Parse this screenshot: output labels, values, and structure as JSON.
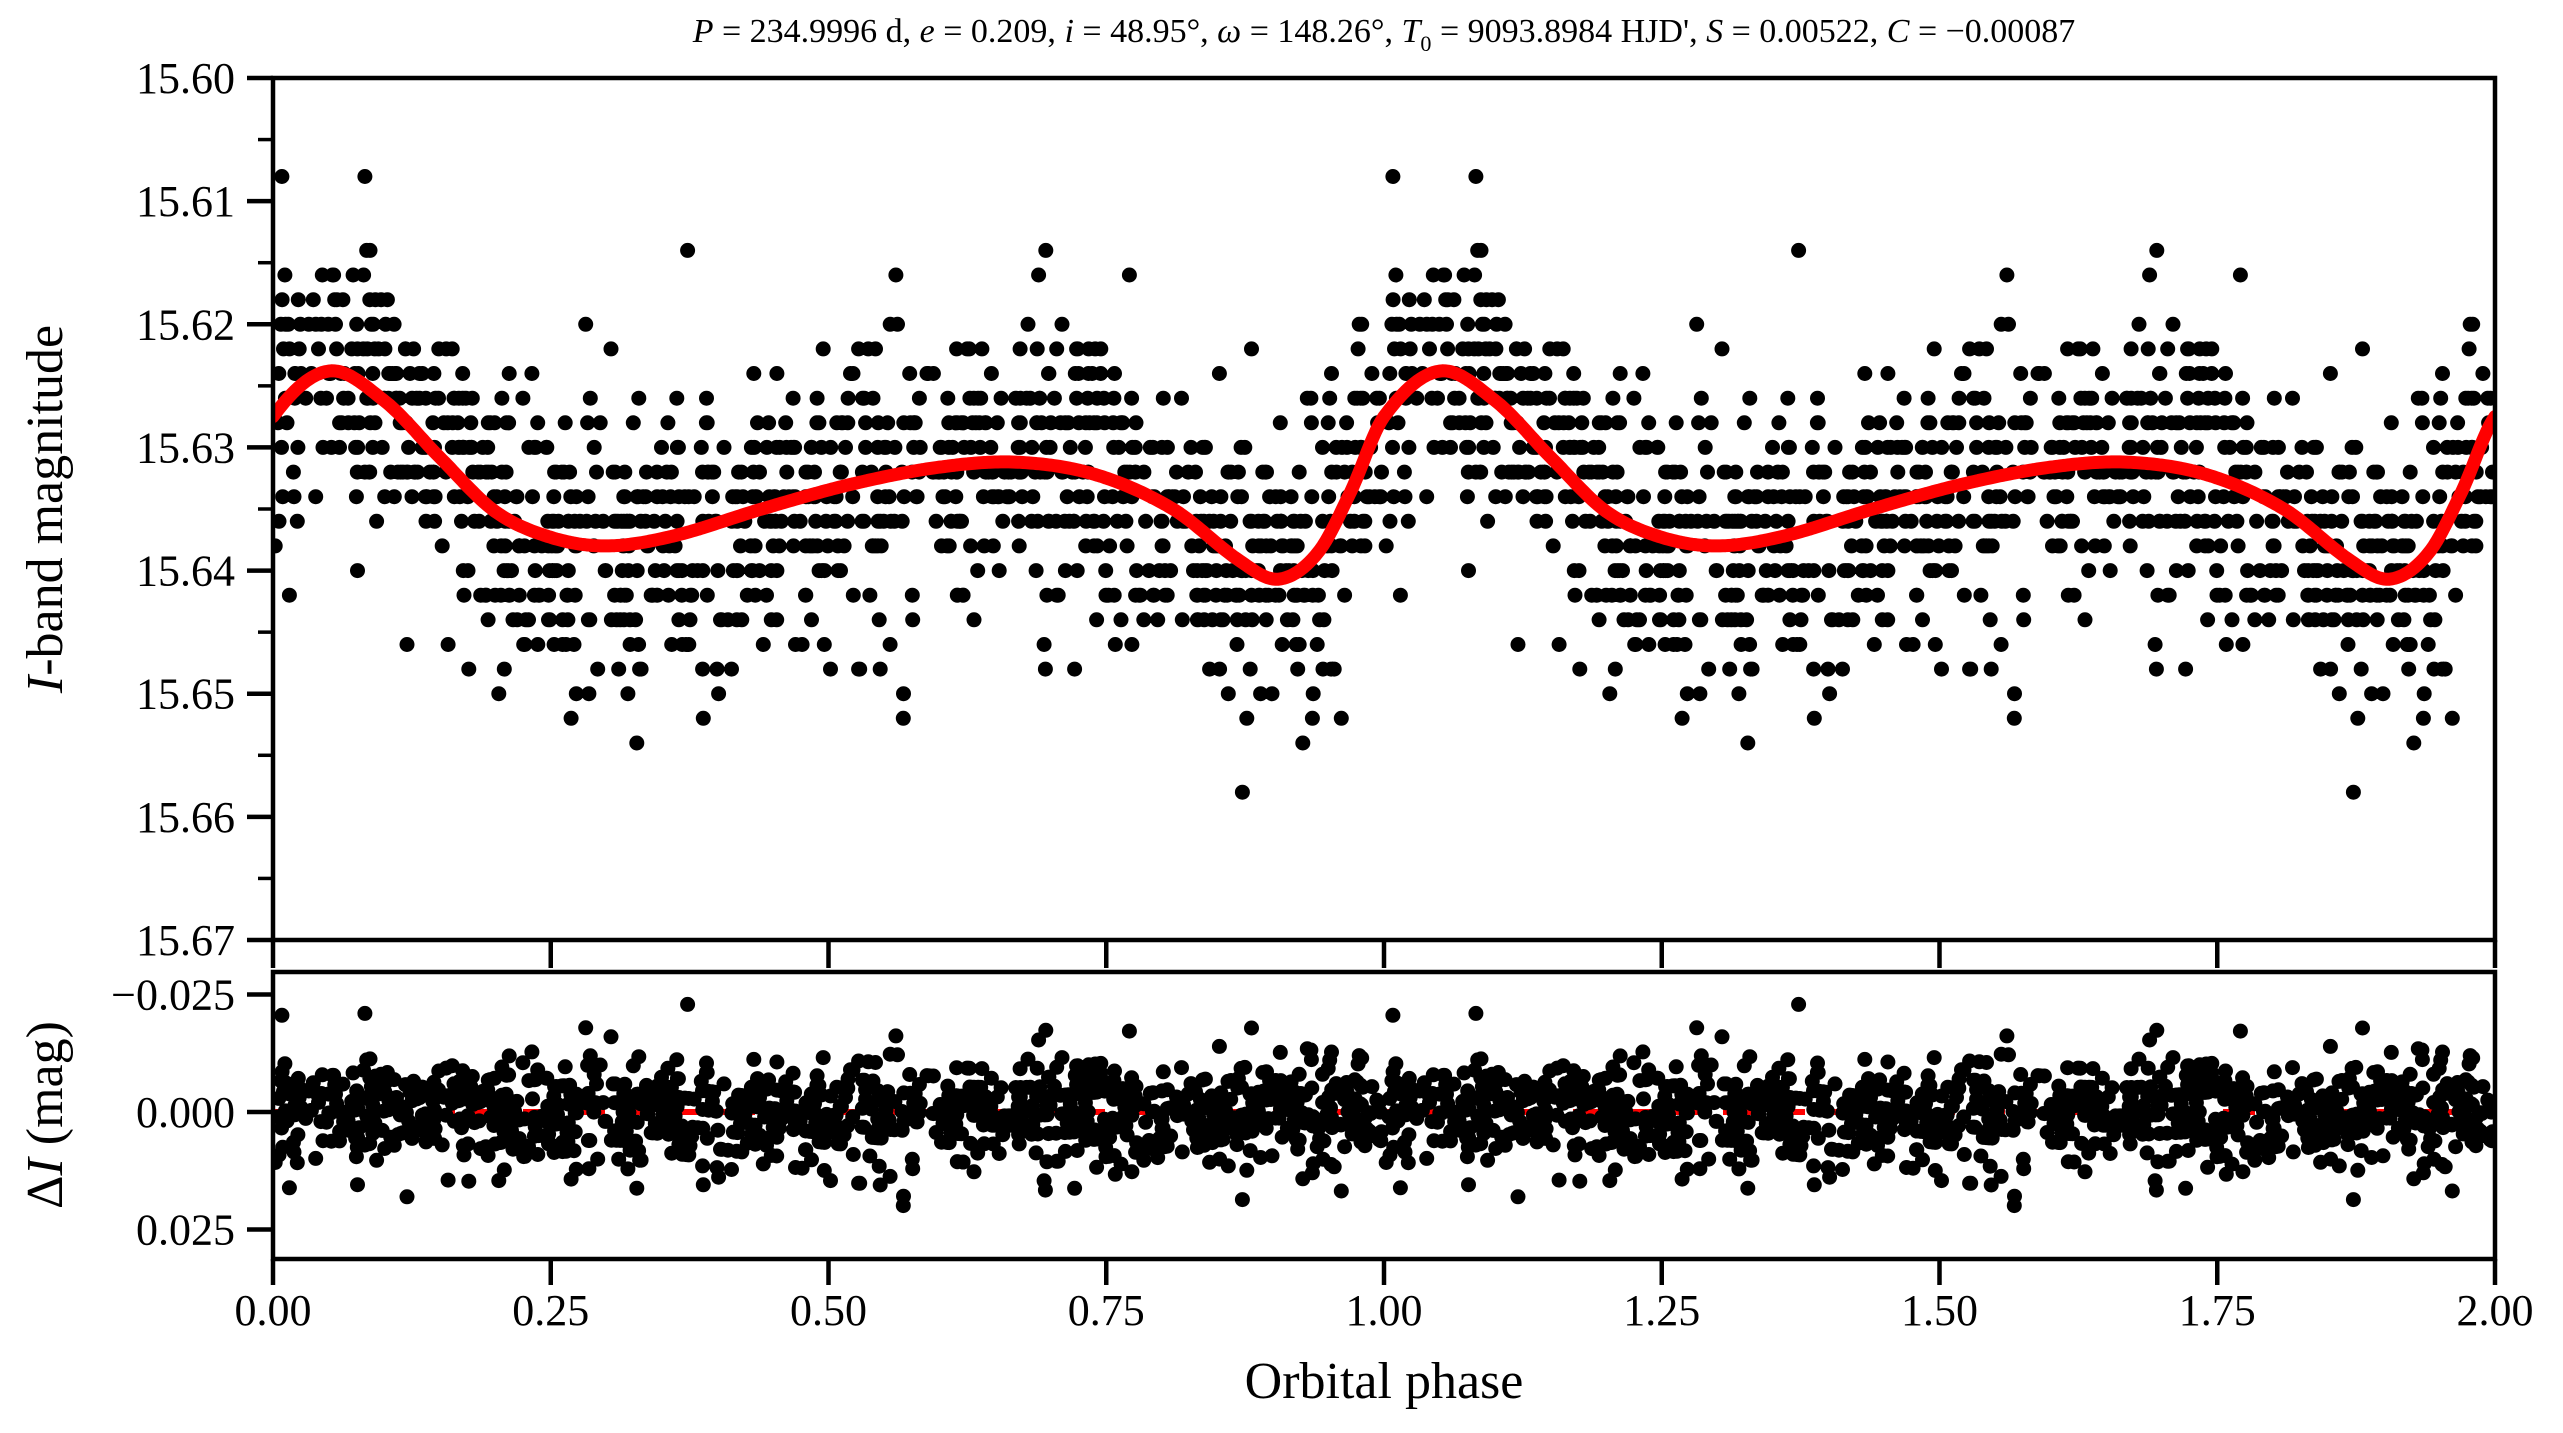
{
  "figure": {
    "background": "#ffffff",
    "colors": {
      "points": "#000000",
      "model_curve": "#ff0000",
      "zero_line": "#ff0000",
      "axes": "#000000"
    }
  },
  "chart_data": {
    "type": "scatter",
    "title_segments": [
      {
        "text": "P",
        "italic": true
      },
      {
        "text": " = 234.9996 d, "
      },
      {
        "text": "e",
        "italic": true
      },
      {
        "text": " = 0.209, "
      },
      {
        "text": "i",
        "italic": true
      },
      {
        "text": " = 48.95°, "
      },
      {
        "text": "ω",
        "italic": true
      },
      {
        "text": " = 148.26°, "
      },
      {
        "text": "T",
        "italic": true
      },
      {
        "text": "0",
        "sub": true
      },
      {
        "text": " = 9093.8984 HJD', "
      },
      {
        "text": "S",
        "italic": true
      },
      {
        "text": " = 0.00522, "
      },
      {
        "text": "C",
        "italic": true
      },
      {
        "text": " = −0.00087"
      }
    ],
    "x_axis": {
      "label": "Orbital phase",
      "range": [
        0,
        2
      ],
      "ticks": [
        0,
        0.25,
        0.5,
        0.75,
        1,
        1.25,
        1.5,
        1.75,
        2
      ],
      "tick_labels": [
        "0.00",
        "0.25",
        "0.50",
        "0.75",
        "1.00",
        "1.25",
        "1.50",
        "1.75",
        "2.00"
      ],
      "grid": false
    },
    "panels": [
      {
        "id": "light-curve",
        "ylabel_segments": [
          {
            "text": "I",
            "italic": true
          },
          {
            "text": "-band magnitude"
          }
        ],
        "y_range": [
          15.6,
          15.67
        ],
        "y_direction": "magnitude increases downward",
        "y_ticks": [
          15.6,
          15.61,
          15.62,
          15.63,
          15.64,
          15.65,
          15.66,
          15.67
        ],
        "y_tick_labels": [
          "15.60",
          "15.61",
          "15.62",
          "15.63",
          "15.64",
          "15.65",
          "15.66",
          "15.67"
        ],
        "y_minor_step": 0.005,
        "model_curve": {
          "color": "#ff0000",
          "stroke_width": 13,
          "period": 1,
          "phase_doubled": true,
          "keypoints": [
            [
              0.0,
              15.6275
            ],
            [
              0.05,
              15.6238
            ],
            [
              0.1,
              15.6262
            ],
            [
              0.15,
              15.6308
            ],
            [
              0.2,
              15.6352
            ],
            [
              0.25,
              15.6373
            ],
            [
              0.3,
              15.638
            ],
            [
              0.36,
              15.6372
            ],
            [
              0.44,
              15.635
            ],
            [
              0.52,
              15.633
            ],
            [
              0.6,
              15.6316
            ],
            [
              0.67,
              15.6312
            ],
            [
              0.74,
              15.6322
            ],
            [
              0.81,
              15.635
            ],
            [
              0.87,
              15.6392
            ],
            [
              0.905,
              15.6407
            ],
            [
              0.94,
              15.6386
            ],
            [
              0.97,
              15.6336
            ]
          ]
        },
        "scatter": {
          "n_base": 1100,
          "phase_doubled": true,
          "noise_sigma": 0.0058,
          "outlier_fraction": 0.05,
          "outlier_sigma": 0.01,
          "quantize_step": 0.002,
          "mag_clamp": [
            15.608,
            15.6625
          ],
          "marker_radius": 7.5,
          "color": "#000000",
          "seed": 1234
        }
      },
      {
        "id": "residuals",
        "ylabel_segments": [
          {
            "text": "Δ"
          },
          {
            "text": "I",
            "italic": true
          },
          {
            "text": " (mag)"
          }
        ],
        "y_range": [
          -0.0298,
          0.0313
        ],
        "y_ticks": [
          -0.025,
          0,
          0.025
        ],
        "y_tick_labels": [
          "−0.025",
          "0.000",
          "0.025"
        ],
        "zero_line": {
          "value": 0,
          "color": "#ff0000",
          "style": "dashed",
          "dash": [
            32,
            18
          ],
          "stroke_width": 6
        },
        "residual_clamp": [
          -0.0232,
          0.0232
        ]
      }
    ]
  }
}
